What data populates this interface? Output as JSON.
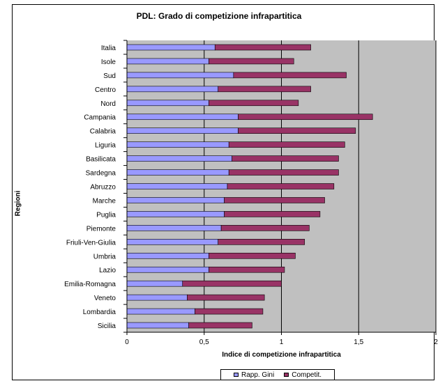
{
  "chart_data": {
    "type": "bar",
    "orientation": "horizontal",
    "stacked": true,
    "title": "PDL: Grado di competizione infrapartitica",
    "xlabel": "Indice di competizione infrapartitica",
    "ylabel": "Regioni",
    "xlim": [
      0,
      2
    ],
    "x_ticks": [
      "0",
      "0,5",
      "1",
      "1,5",
      "2"
    ],
    "categories": [
      "Italia",
      "Isole",
      "Sud",
      "Centro",
      "Nord",
      "Campania",
      "Calabria",
      "Liguria",
      "Basilicata",
      "Sardegna",
      "Abruzzo",
      "Marche",
      "Puglia",
      "Piemonte",
      "Friuli-Ven-Giulia",
      "Umbria",
      "Lazio",
      "Emilia-Romagna",
      "Veneto",
      "Lombardia",
      "Sicilia"
    ],
    "series": [
      {
        "name": "Rapp. Gini",
        "color": "#9999ff",
        "values": [
          0.57,
          0.53,
          0.69,
          0.59,
          0.53,
          0.72,
          0.72,
          0.66,
          0.68,
          0.66,
          0.65,
          0.63,
          0.63,
          0.61,
          0.59,
          0.53,
          0.53,
          0.36,
          0.39,
          0.44,
          0.4
        ]
      },
      {
        "name": "Competit.",
        "color": "#993366",
        "values": [
          0.62,
          0.55,
          0.73,
          0.6,
          0.58,
          0.87,
          0.76,
          0.75,
          0.69,
          0.71,
          0.69,
          0.65,
          0.62,
          0.57,
          0.56,
          0.56,
          0.49,
          0.64,
          0.5,
          0.44,
          0.41
        ]
      }
    ],
    "legend_position": "bottom",
    "grid": "vertical major lines",
    "plot_background": "#c0c0c0"
  }
}
